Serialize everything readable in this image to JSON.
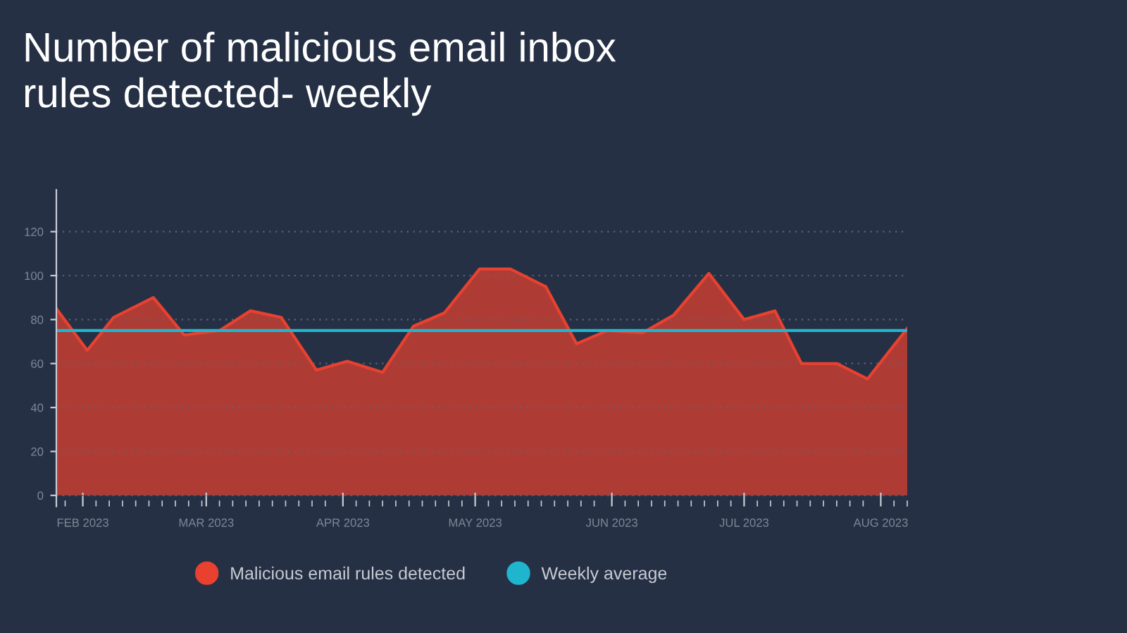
{
  "chart_data": {
    "type": "area",
    "title": "Number of malicious email inbox\nrules detected- weekly",
    "x": [
      "2023-01-26",
      "2023-02-02",
      "2023-02-08",
      "2023-02-17",
      "2023-02-24",
      "2023-03-04",
      "2023-03-11",
      "2023-03-18",
      "2023-03-26",
      "2023-04-02",
      "2023-04-10",
      "2023-04-17",
      "2023-04-24",
      "2023-05-02",
      "2023-05-09",
      "2023-05-17",
      "2023-05-24",
      "2023-05-31",
      "2023-06-08",
      "2023-06-15",
      "2023-06-23",
      "2023-07-01",
      "2023-07-08",
      "2023-07-14",
      "2023-07-22",
      "2023-07-29",
      "2023-08-07"
    ],
    "series": [
      {
        "name": "Malicious email rules detected",
        "color": "#e8412f",
        "values": [
          85,
          66,
          81,
          90,
          73,
          75,
          84,
          81,
          57,
          61,
          56,
          77,
          83,
          103,
          103,
          95,
          69,
          75,
          74,
          82,
          101,
          80,
          84,
          60,
          60,
          53,
          76
        ]
      }
    ],
    "ref_lines": [
      {
        "axis": "y",
        "value": 75,
        "label": "Weekly average",
        "color": "#1fb5cf"
      }
    ],
    "xlim": [
      "2023-01-26",
      "2023-08-07"
    ],
    "xticks": [
      {
        "value": "2023-02-01",
        "label": "FEB 2023"
      },
      {
        "value": "2023-03-01",
        "label": "MAR 2023"
      },
      {
        "value": "2023-04-01",
        "label": "APR 2023"
      },
      {
        "value": "2023-05-01",
        "label": "MAY 2023"
      },
      {
        "value": "2023-06-01",
        "label": "JUN 2023"
      },
      {
        "value": "2023-07-01",
        "label": "JUL 2023"
      },
      {
        "value": "2023-08-01",
        "label": "AUG 2023"
      }
    ],
    "ylim": [
      -5,
      139
    ],
    "yticks": [
      0,
      20,
      40,
      60,
      80,
      100,
      120
    ],
    "grid": "y",
    "legend": "bottom"
  }
}
